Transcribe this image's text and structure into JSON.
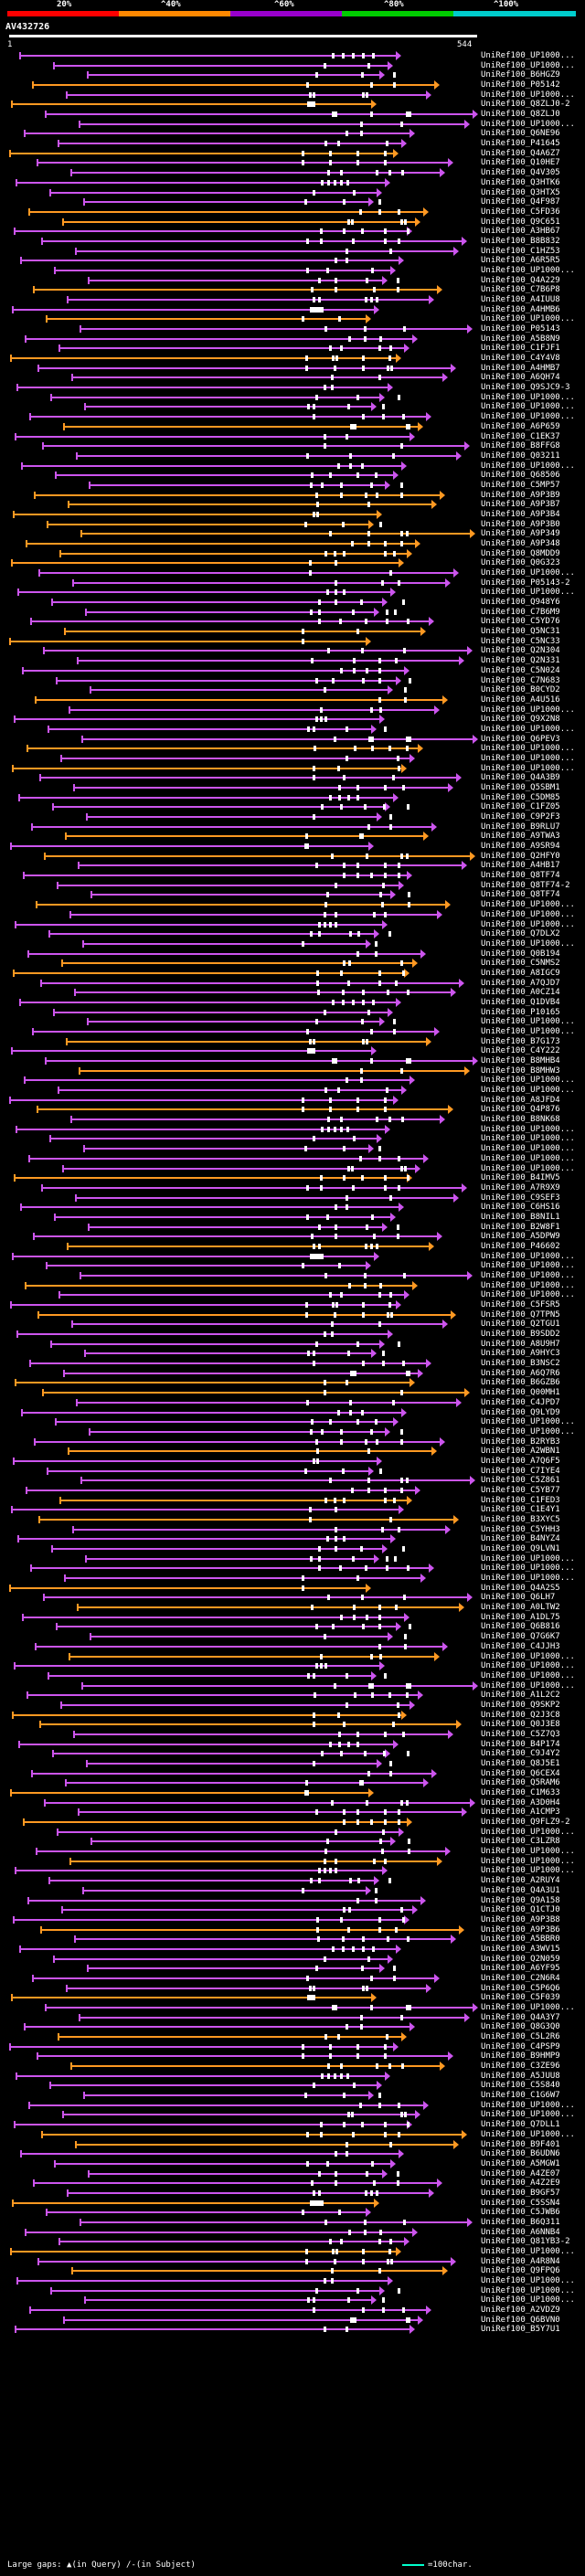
{
  "legend": {
    "labels": [
      "20%",
      "^40%",
      "^60%",
      "^80%",
      "^100%"
    ],
    "colors": [
      "#ff0000",
      "#ff8800",
      "#9900cc",
      "#00cc00",
      "#00cccc"
    ]
  },
  "query": {
    "title": "AV432726",
    "scale_start": "1",
    "scale_end": "544"
  },
  "footer": {
    "large_gaps_label": "Large gaps:",
    "in_query": "(in Query)",
    "in_subject": "(in Subject)",
    "scale_label": "=100char."
  },
  "hits": [
    "UniRef100_UP1000...",
    "UniRef100_UP1000...",
    "UniRef100_B6HGZ9",
    "UniRef100_P05142",
    "UniRef100_UP1000...",
    "UniRef100_Q8ZLJ0-2",
    "UniRef100_Q8ZLJ0",
    "UniRef100_UP1000...",
    "UniRef100_Q6NE96",
    "UniRef100_P41645",
    "UniRef100_Q4A6Z7",
    "UniRef100_Q10HE7",
    "UniRef100_Q4V305",
    "UniRef100_Q3HTK6",
    "UniRef100_Q3HTX5",
    "UniRef100_Q4F987",
    "UniRef100_C5FD36",
    "UniRef100_Q9C651",
    "UniRef100_A3HB67",
    "UniRef100_B8B832",
    "UniRef100_C1HZ53",
    "UniRef100_A6R5R5",
    "UniRef100_UP1000...",
    "UniRef100_Q4A229",
    "UniRef100_C7B6P8",
    "UniRef100_A4IUU8",
    "UniRef100_A4HMB6",
    "UniRef100_UP1000...",
    "UniRef100_P05143",
    "UniRef100_A5B8N9",
    "UniRef100_C1FJF1",
    "UniRef100_C4Y4V8",
    "UniRef100_A4HMB7",
    "UniRef100_A6QH74",
    "UniRef100_Q9SJC9-3",
    "UniRef100_UP1000...",
    "UniRef100_UP1000...",
    "UniRef100_UP1000...",
    "UniRef100_A6P659",
    "UniRef100_C1EK37",
    "UniRef100_B8FFG8",
    "UniRef100_Q03211",
    "UniRef100_UP1000...",
    "UniRef100_Q68506",
    "UniRef100_C5MP57",
    "UniRef100_A9P3B9",
    "UniRef100_A9P3B7",
    "UniRef100_A9P3B4",
    "UniRef100_A9P3B0",
    "UniRef100_A9P349",
    "UniRef100_A9P348",
    "UniRef100_Q8MDD9",
    "UniRef100_Q0G323",
    "UniRef100_UP1000...",
    "UniRef100_P05143-2",
    "UniRef100_UP1000...",
    "UniRef100_Q948Y6",
    "UniRef100_C7B6M9",
    "UniRef100_C5YD76",
    "UniRef100_Q5NC31",
    "UniRef100_C5NC33",
    "UniRef100_Q2N304",
    "UniRef100_Q2N331",
    "UniRef100_C5N024",
    "UniRef100_C7N683",
    "UniRef100_B0CYD2",
    "UniRef100_A4U516",
    "UniRef100_UP1000...",
    "UniRef100_Q9X2N8",
    "UniRef100_UP1000...",
    "UniRef100_Q6PEV3",
    "UniRef100_UP1000...",
    "UniRef100_UP1000...",
    "UniRef100_UP1000...",
    "UniRef100_Q4A3B9",
    "UniRef100_Q5SBM1",
    "UniRef100_C5DM85",
    "UniRef100_C1FZ05",
    "UniRef100_C9P2F3",
    "UniRef100_B9RLU7",
    "UniRef100_A9TWA3",
    "UniRef100_A9SR94",
    "UniRef100_Q2HFY0",
    "UniRef100_A4HB17",
    "UniRef100_Q8TF74",
    "UniRef100_Q8TF74-2",
    "UniRef100_Q8TF74",
    "UniRef100_UP1000...",
    "UniRef100_UP1000...",
    "UniRef100_UP1000...",
    "UniRef100_Q7DLX2",
    "UniRef100_UP1000...",
    "UniRef100_Q0B194",
    "UniRef100_C5NMS2",
    "UniRef100_A8IGC9",
    "UniRef100_A7QJD7",
    "UniRef100_A0CZ14",
    "UniRef100_Q1DVB4",
    "UniRef100_P10165",
    "UniRef100_UP1000...",
    "UniRef100_UP1000...",
    "UniRef100_B7G173",
    "UniRef100_C4Y222",
    "UniRef100_B8MHB4",
    "UniRef100_B8MHW3",
    "UniRef100_UP1000...",
    "UniRef100_UP1000...",
    "UniRef100_A8JFD4",
    "UniRef100_Q4P876",
    "UniRef100_B8NK68",
    "UniRef100_UP1000...",
    "UniRef100_UP1000...",
    "UniRef100_UP1000...",
    "UniRef100_UP1000...",
    "UniRef100_UP1000...",
    "UniRef100_B4IMV5",
    "UniRef100_A7R9X9",
    "UniRef100_C9SEF3",
    "UniRef100_C6HS16",
    "UniRef100_B8NIL1",
    "UniRef100_B2W8F1",
    "UniRef100_A5DPW9",
    "UniRef100_P46602",
    "UniRef100_UP1000...",
    "UniRef100_UP1000...",
    "UniRef100_UP1000...",
    "UniRef100_UP1000...",
    "UniRef100_UP1000...",
    "UniRef100_C5FSR5",
    "UniRef100_Q7TPN5",
    "UniRef100_Q2TGU1",
    "UniRef100_B9SDD2",
    "UniRef100_A8U9H7",
    "UniRef100_A9HYC3",
    "UniRef100_B3NSC2",
    "UniRef100_A6Q7R6",
    "UniRef100_B6GZB6",
    "UniRef100_Q00MH1",
    "UniRef100_C4JPD7",
    "UniRef100_Q9LYD9",
    "UniRef100_UP1000...",
    "UniRef100_UP1000...",
    "UniRef100_B2RYB3",
    "UniRef100_A2WBN1",
    "UniRef100_A7Q6F5",
    "UniRef100_C7IYE4",
    "UniRef100_C5Z861",
    "UniRef100_C5YB77",
    "UniRef100_C1FED3",
    "UniRef100_C1E4Y1",
    "UniRef100_B3XYC5",
    "UniRef100_C5YHH3",
    "UniRef100_B4NYZ4",
    "UniRef100_Q9LVN1",
    "UniRef100_UP1000...",
    "UniRef100_UP1000...",
    "UniRef100_UP1000...",
    "UniRef100_Q4A2S5",
    "UniRef100_Q6LH7",
    "UniRef100_A0LTW2",
    "UniRef100_A1DL75",
    "UniRef100_Q6B816",
    "UniRef100_Q7G6K7",
    "UniRef100_C4JJH3",
    "UniRef100_UP1000...",
    "UniRef100_UP1000...",
    "UniRef100_UP1000...",
    "UniRef100_UP1000...",
    "UniRef100_A1L2C2",
    "UniRef100_Q9SKP2",
    "UniRef100_Q2J3C8",
    "UniRef100_Q0J3E8",
    "UniRef100_C5Z7Q3",
    "UniRef100_B4P174",
    "UniRef100_C9J4Y2",
    "UniRef100_Q8J5E1",
    "UniRef100_Q6CEX4",
    "UniRef100_Q5RAM6",
    "UniRef100_C1M633",
    "UniRef100_A3D0H4",
    "UniRef100_A1CMP3",
    "UniRef100_Q9FLZ9-2",
    "UniRef100_UP1000...",
    "UniRef100_C3LZR8",
    "UniRef100_UP1000...",
    "UniRef100_UP1000...",
    "UniRef100_UP1000...",
    "UniRef100_A2RUY4",
    "UniRef100_Q4A3U1",
    "UniRef100_Q9A158",
    "UniRef100_Q1CTJ0",
    "UniRef100_A9P3B8",
    "UniRef100_A9P3B6",
    "UniRef100_A5BBR0",
    "UniRef100_A3WV15",
    "UniRef100_Q2N059",
    "UniRef100_A6YF95",
    "UniRef100_C2N6R4",
    "UniRef100_C5P6Q6",
    "UniRef100_C5F039",
    "UniRef100_UP1000...",
    "UniRef100_Q4A3Y7",
    "UniRef100_Q8G3Q0",
    "UniRef100_C5L2R6",
    "UniRef100_C4PSP9",
    "UniRef100_B9HMP9",
    "UniRef100_C3ZE96",
    "UniRef100_A5JUU8",
    "UniRef100_C5S840",
    "UniRef100_C1G6W7",
    "UniRef100_UP1000...",
    "UniRef100_UP1000...",
    "UniRef100_Q7DLL1",
    "UniRef100_UP1000...",
    "UniRef100_B9F401",
    "UniRef100_B6UDN6",
    "UniRef100_A5MGW1",
    "UniRef100_A4ZE07",
    "UniRef100_A4Z2E9",
    "UniRef100_B9GF57",
    "UniRef100_C5SSN4",
    "UniRef100_C5JWB6",
    "UniRef100_B6Q311",
    "UniRef100_A6NNB4",
    "UniRef100_Q81YB3-2",
    "UniRef100_UP1000...",
    "UniRef100_A4R8N4",
    "UniRef100_Q9FPQ6",
    "UniRef100_UP1000...",
    "UniRef100_UP1000...",
    "UniRef100_UP1000...",
    "UniRef100_A2VDZ9",
    "UniRef100_Q6BVN0",
    "UniRef100_B5Y7U1"
  ]
}
